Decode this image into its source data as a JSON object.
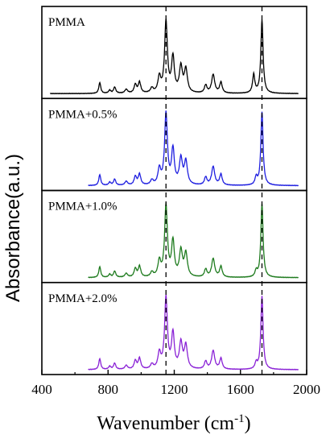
{
  "chart_data": {
    "type": "line",
    "title": "",
    "xlabel": "Wavenumber (cm",
    "xlabel_sup": "-1",
    "xlabel_end": ")",
    "ylabel": "Absorbance(a.u.)",
    "xlim": [
      400,
      2000
    ],
    "ylim": [
      0,
      1
    ],
    "x_ticks": [
      "400",
      "800",
      "1200",
      "1600",
      "2000"
    ],
    "reference_lines": [
      1150,
      1730
    ],
    "peaks_common": [
      {
        "x": 750,
        "h": 0.14,
        "w": 7
      },
      {
        "x": 810,
        "h": 0.04,
        "w": 8
      },
      {
        "x": 840,
        "h": 0.08,
        "w": 8
      },
      {
        "x": 910,
        "h": 0.05,
        "w": 10
      },
      {
        "x": 965,
        "h": 0.11,
        "w": 9
      },
      {
        "x": 990,
        "h": 0.14,
        "w": 9
      },
      {
        "x": 1065,
        "h": 0.06,
        "w": 10
      },
      {
        "x": 1110,
        "h": 0.2,
        "w": 10
      },
      {
        "x": 1150,
        "h": 0.92,
        "w": 10
      },
      {
        "x": 1192,
        "h": 0.45,
        "w": 10
      },
      {
        "x": 1240,
        "h": 0.33,
        "w": 11
      },
      {
        "x": 1270,
        "h": 0.3,
        "w": 11
      },
      {
        "x": 1390,
        "h": 0.1,
        "w": 9
      },
      {
        "x": 1435,
        "h": 0.24,
        "w": 11
      },
      {
        "x": 1482,
        "h": 0.14,
        "w": 9
      },
      {
        "x": 1730,
        "h": 0.95,
        "w": 8
      }
    ],
    "series": [
      {
        "name": "PMMA",
        "color": "#000000",
        "x_start": 450,
        "extra_peaks": [
          {
            "x": 1680,
            "h": 0.24,
            "w": 8
          }
        ]
      },
      {
        "name": "PMMA+0.5%",
        "color": "#1f1fe0",
        "x_start": 680,
        "extra_peaks": [
          {
            "x": 1695,
            "h": 0.1,
            "w": 8
          }
        ]
      },
      {
        "name": "PMMA+1.0%",
        "color": "#1e7b1e",
        "x_start": 680,
        "extra_peaks": [
          {
            "x": 1695,
            "h": 0.08,
            "w": 8
          }
        ]
      },
      {
        "name": "PMMA+2.0%",
        "color": "#8a22d6",
        "x_start": 680,
        "extra_peaks": [
          {
            "x": 1695,
            "h": 0.08,
            "w": 8
          }
        ]
      }
    ]
  }
}
